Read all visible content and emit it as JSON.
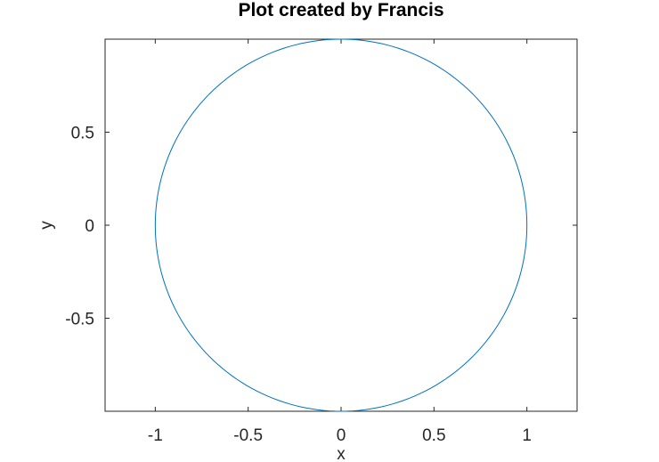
{
  "chart_data": {
    "type": "line",
    "title": "Plot created by Francis",
    "xlabel": "x",
    "ylabel": "y",
    "xlim": [
      -1.27,
      1.27
    ],
    "ylim": [
      -1,
      1
    ],
    "xticks": [
      -1,
      -0.5,
      0,
      0.5,
      1
    ],
    "xtick_labels": [
      "-1",
      "-0.5",
      "0",
      "0.5",
      "1"
    ],
    "yticks": [
      -0.5,
      0,
      0.5
    ],
    "ytick_labels": [
      "-0.5",
      "0",
      "0.5"
    ],
    "grid": false,
    "series": [
      {
        "color": "#0072bd",
        "equation": "x = cos(t), y = sin(t)",
        "t_range": [
          0,
          6.283185307
        ],
        "samples": 200
      }
    ]
  }
}
